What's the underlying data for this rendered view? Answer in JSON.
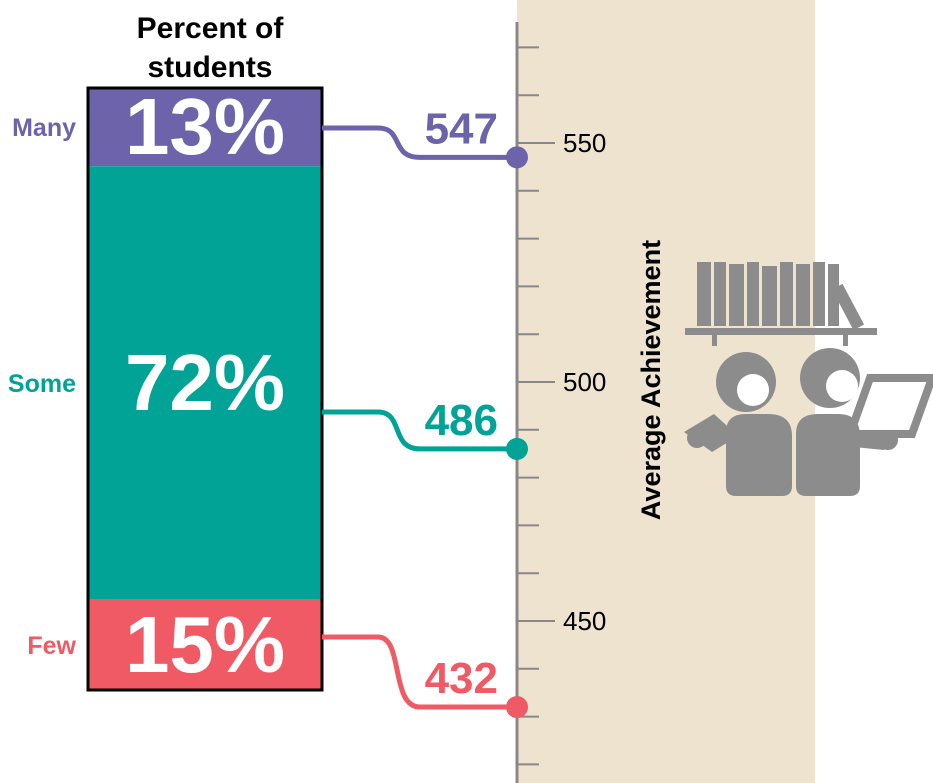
{
  "colors": {
    "many": "#6C63AA",
    "some": "#00A396",
    "few": "#F05A64",
    "band": "#EEE3CF",
    "axis": "#888888",
    "icon": "#8C8C8C"
  },
  "chart_data": {
    "type": "bar",
    "title": "Percent of students",
    "title_lines": [
      "Percent of",
      "students"
    ],
    "ylabel": "Average Achievement",
    "y_axis_ticks": [
      450,
      500,
      550
    ],
    "y_axis_range": [
      412,
      580
    ],
    "categories": [
      "Many",
      "Some",
      "Few"
    ],
    "series": [
      {
        "key": "many",
        "category": "Many",
        "percent": 13,
        "percent_label": "13%",
        "achievement": 547,
        "achievement_label": "547"
      },
      {
        "key": "some",
        "category": "Some",
        "percent": 72,
        "percent_label": "72%",
        "achievement": 486,
        "achievement_label": "486"
      },
      {
        "key": "few",
        "category": "Few",
        "percent": 15,
        "percent_label": "15%",
        "achievement": 432,
        "achievement_label": "432"
      }
    ]
  },
  "illustration": {
    "icon_name": "students-reading-icon"
  }
}
